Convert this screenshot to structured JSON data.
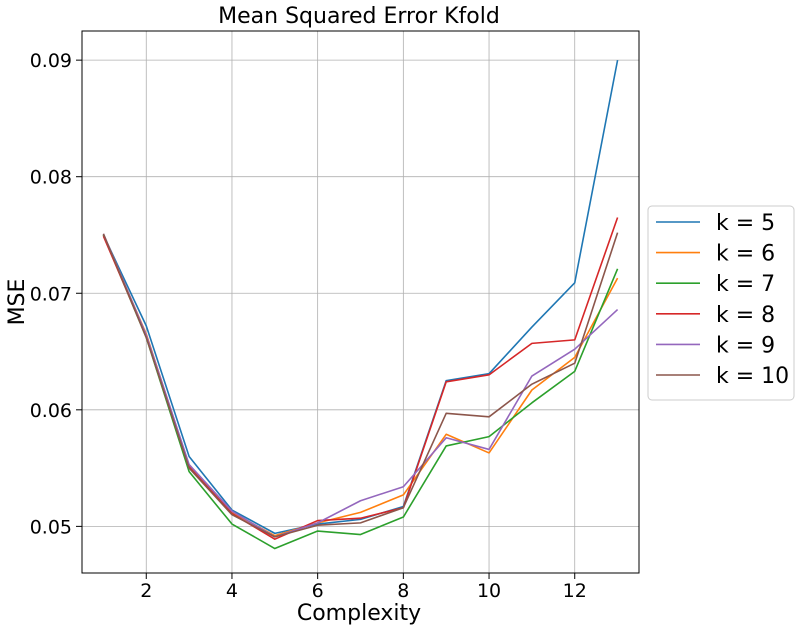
{
  "chart_data": {
    "type": "line",
    "title": "Mean Squared Error Kfold",
    "xlabel": "Complexity",
    "ylabel": "MSE",
    "xlim": [
      0.5,
      13.5
    ],
    "ylim": [
      0.046,
      0.0925
    ],
    "xticks": [
      2,
      4,
      6,
      8,
      10,
      12
    ],
    "yticks": [
      0.05,
      0.06,
      0.07,
      0.08,
      0.09
    ],
    "ytick_labels": [
      "0.05",
      "0.06",
      "0.07",
      "0.08",
      "0.09"
    ],
    "grid": true,
    "legend_position": "outside-right",
    "x": [
      1,
      2,
      3,
      4,
      5,
      6,
      7,
      8,
      9,
      10,
      11,
      12,
      13
    ],
    "series": [
      {
        "name": "k = 5",
        "color": "#1f77b4",
        "values": [
          0.075,
          0.0672,
          0.056,
          0.0514,
          0.0494,
          0.0502,
          0.0506,
          0.0517,
          0.0625,
          0.0631,
          0.0671,
          0.0709,
          0.09
        ]
      },
      {
        "name": "k = 6",
        "color": "#ff7f0e",
        "values": [
          0.075,
          0.0665,
          0.0552,
          0.0512,
          0.0492,
          0.0503,
          0.0512,
          0.0527,
          0.0579,
          0.0563,
          0.0617,
          0.0645,
          0.0713
        ]
      },
      {
        "name": "k = 7",
        "color": "#2ca02c",
        "values": [
          0.075,
          0.0662,
          0.0547,
          0.0502,
          0.0481,
          0.0496,
          0.0493,
          0.0508,
          0.0569,
          0.0577,
          0.0606,
          0.0633,
          0.0721
        ]
      },
      {
        "name": "k = 8",
        "color": "#d62728",
        "values": [
          0.0749,
          0.0663,
          0.0551,
          0.0511,
          0.0489,
          0.0505,
          0.0507,
          0.0516,
          0.0624,
          0.063,
          0.0657,
          0.066,
          0.0765
        ]
      },
      {
        "name": "k = 9",
        "color": "#9467bd",
        "values": [
          0.0751,
          0.0664,
          0.0553,
          0.0513,
          0.0491,
          0.0503,
          0.0522,
          0.0534,
          0.0576,
          0.0566,
          0.0629,
          0.0652,
          0.0686
        ]
      },
      {
        "name": "k = 10",
        "color": "#8c564b",
        "values": [
          0.0751,
          0.0662,
          0.055,
          0.051,
          0.0491,
          0.0501,
          0.0503,
          0.0516,
          0.0597,
          0.0594,
          0.0622,
          0.064,
          0.0752
        ]
      }
    ]
  }
}
